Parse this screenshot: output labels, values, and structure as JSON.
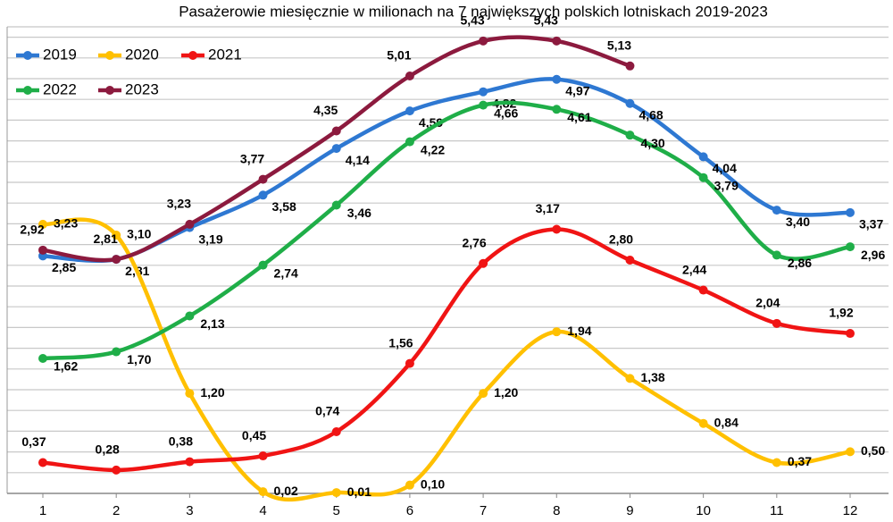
{
  "chart_data": {
    "type": "line",
    "title": "Pasażerowie miesięcznie w milionach na 7 największych polskich lotniskach 2019-2023",
    "x": [
      1,
      2,
      3,
      4,
      5,
      6,
      7,
      8,
      9,
      10,
      11,
      12
    ],
    "ylim": [
      0,
      5.6
    ],
    "series": [
      {
        "name": "2019",
        "color": "#2e78d2",
        "values": [
          2.85,
          2.81,
          3.19,
          3.58,
          4.14,
          4.59,
          4.82,
          4.97,
          4.68,
          4.04,
          3.4,
          3.37
        ],
        "value_labels": [
          "2,85",
          "2,81",
          "3,19",
          "3,58",
          "4,14",
          "4,59",
          "4,82",
          "4,97",
          "4,68",
          "4,04",
          "3,40",
          "3,37"
        ]
      },
      {
        "name": "2020",
        "color": "#ffc000",
        "values": [
          3.23,
          3.1,
          1.2,
          0.02,
          0.01,
          0.1,
          1.2,
          1.94,
          1.38,
          0.84,
          0.37,
          0.5
        ],
        "value_labels": [
          "3,23",
          "3,10",
          "1,20",
          "0,02",
          "0,01",
          "0,10",
          "1,20",
          "1,94",
          "1,38",
          "0,84",
          "0,37",
          "0,50"
        ]
      },
      {
        "name": "2021",
        "color": "#f01414",
        "values": [
          0.37,
          0.28,
          0.38,
          0.45,
          0.74,
          1.56,
          2.76,
          3.17,
          2.8,
          2.44,
          2.04,
          1.92
        ],
        "value_labels": [
          "0,37",
          "0,28",
          "0,38",
          "0,45",
          "0,74",
          "1,56",
          "2,76",
          "3,17",
          "2,80",
          "2,44",
          "2,04",
          "1,92"
        ]
      },
      {
        "name": "2022",
        "color": "#1fae48",
        "values": [
          1.62,
          1.7,
          2.13,
          2.74,
          3.46,
          4.22,
          4.66,
          4.61,
          4.3,
          3.79,
          2.86,
          2.96
        ],
        "value_labels": [
          "1,62",
          "1,70",
          "2,13",
          "2,74",
          "3,46",
          "4,22",
          "4,66",
          "4,61",
          "4,30",
          "3,79",
          "2,86",
          "2,96"
        ]
      },
      {
        "name": "2023",
        "color": "#8c1a3e",
        "values": [
          2.92,
          2.81,
          3.23,
          3.77,
          4.35,
          5.01,
          5.43,
          5.43,
          5.13,
          null,
          null,
          null
        ],
        "value_labels": [
          "2,92",
          "2,81",
          "3,23",
          "3,77",
          "4,35",
          "5,01",
          "5,43",
          "5,43",
          "5,13",
          null,
          null,
          null
        ]
      }
    ],
    "legend": "top-left",
    "grid": true
  }
}
